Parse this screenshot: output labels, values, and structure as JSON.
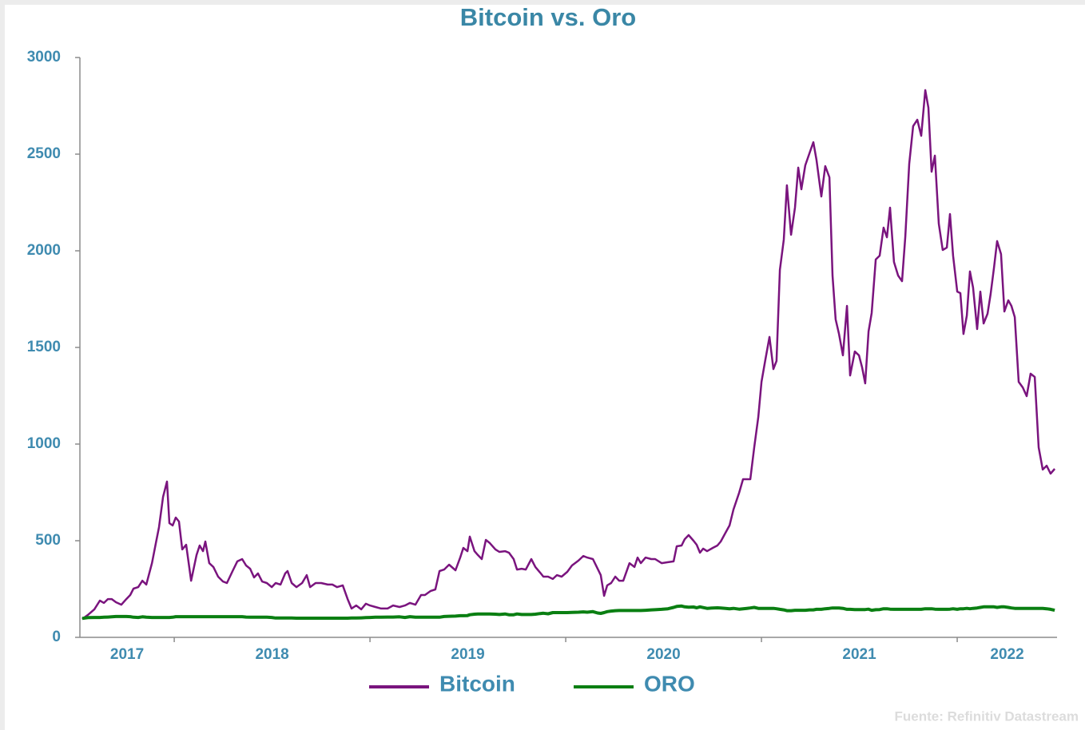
{
  "chart_data": {
    "type": "line",
    "title": "Bitcoin vs. Oro",
    "source": "Fuente: Refinitiv Datastream",
    "legend": "bottom",
    "xlim": [
      2017.518,
      2022.51
    ],
    "xticks": [
      {
        "value": 2017,
        "label": "2017"
      },
      {
        "value": 2018,
        "label": "2018"
      },
      {
        "value": 2019,
        "label": "2019"
      },
      {
        "value": 2020,
        "label": "2020"
      },
      {
        "value": 2021,
        "label": "2021"
      },
      {
        "value": 2022,
        "label": "2022"
      }
    ],
    "ylim": [
      0,
      3000
    ],
    "yticks": [
      0,
      500,
      1000,
      1500,
      2000,
      2500,
      3000
    ],
    "x": [
      2017.53,
      2017.559,
      2017.592,
      2017.62,
      2017.641,
      2017.661,
      2017.681,
      2017.702,
      2017.73,
      2017.755,
      2017.775,
      2017.792,
      2017.816,
      2017.837,
      2017.857,
      2017.886,
      2017.906,
      2017.922,
      2017.943,
      2017.963,
      2017.975,
      2017.992,
      2018.008,
      2018.024,
      2018.041,
      2018.061,
      2018.086,
      2018.114,
      2018.13,
      2018.147,
      2018.159,
      2018.179,
      2018.2,
      2018.224,
      2018.249,
      2018.269,
      2018.298,
      2018.322,
      2018.347,
      2018.367,
      2018.388,
      2018.408,
      2018.428,
      2018.449,
      2018.473,
      2018.498,
      2018.518,
      2018.543,
      2018.567,
      2018.579,
      2018.6,
      2018.624,
      2018.653,
      2018.677,
      2018.694,
      2018.722,
      2018.751,
      2018.784,
      2018.808,
      2018.832,
      2018.861,
      2018.886,
      2018.906,
      2018.93,
      2018.955,
      2018.979,
      2019.0,
      2019.028,
      2019.057,
      2019.09,
      2019.118,
      2019.151,
      2019.179,
      2019.204,
      2019.232,
      2019.261,
      2019.281,
      2019.31,
      2019.334,
      2019.355,
      2019.379,
      2019.404,
      2019.437,
      2019.461,
      2019.477,
      2019.498,
      2019.51,
      2019.534,
      2019.551,
      2019.571,
      2019.592,
      2019.612,
      2019.641,
      2019.661,
      2019.69,
      2019.71,
      2019.734,
      2019.751,
      2019.775,
      2019.796,
      2019.824,
      2019.845,
      2019.869,
      2019.886,
      2019.91,
      2019.934,
      2019.955,
      2019.979,
      2020.008,
      2020.032,
      2020.065,
      2020.09,
      2020.11,
      2020.139,
      2020.163,
      2020.179,
      2020.196,
      2020.212,
      2020.232,
      2020.253,
      2020.273,
      2020.294,
      2020.326,
      2020.351,
      2020.367,
      2020.384,
      2020.408,
      2020.437,
      2020.457,
      2020.49,
      2020.522,
      2020.551,
      2020.567,
      2020.592,
      2020.608,
      2020.628,
      2020.653,
      2020.669,
      2020.686,
      2020.702,
      2020.722,
      2020.751,
      2020.775,
      2020.792,
      2020.816,
      2020.837,
      2020.857,
      2020.886,
      2020.906,
      2020.926,
      2020.943,
      2020.963,
      2020.984,
      2021.0,
      2021.02,
      2021.041,
      2021.061,
      2021.077,
      2021.094,
      2021.114,
      2021.13,
      2021.151,
      2021.171,
      2021.188,
      2021.204,
      2021.224,
      2021.245,
      2021.265,
      2021.281,
      2021.306,
      2021.326,
      2021.347,
      2021.363,
      2021.379,
      2021.396,
      2021.416,
      2021.437,
      2021.453,
      2021.477,
      2021.498,
      2021.514,
      2021.53,
      2021.547,
      2021.563,
      2021.584,
      2021.604,
      2021.624,
      2021.641,
      2021.657,
      2021.677,
      2021.698,
      2021.718,
      2021.735,
      2021.755,
      2021.775,
      2021.796,
      2021.816,
      2021.837,
      2021.853,
      2021.869,
      2021.886,
      2021.906,
      2021.926,
      2021.947,
      2021.963,
      2021.979,
      2022.0,
      2022.016,
      2022.032,
      2022.049,
      2022.065,
      2022.081,
      2022.102,
      2022.118,
      2022.135,
      2022.155,
      2022.171,
      2022.188,
      2022.204,
      2022.224,
      2022.241,
      2022.261,
      2022.277,
      2022.294,
      2022.314,
      2022.335,
      2022.355,
      2022.375,
      2022.396,
      2022.416,
      2022.437,
      2022.457,
      2022.477,
      2022.498
    ],
    "series": [
      {
        "name": "Bitcoin",
        "color": "#7a147e",
        "width": 2.5,
        "values": [
          95,
          116,
          145,
          190,
          178,
          198,
          198,
          182,
          169,
          198,
          219,
          252,
          260,
          293,
          273,
          384,
          488,
          570,
          727,
          806,
          591,
          579,
          620,
          599,
          455,
          479,
          293,
          426,
          475,
          446,
          496,
          384,
          364,
          314,
          289,
          281,
          343,
          393,
          405,
          372,
          355,
          310,
          331,
          289,
          281,
          260,
          281,
          273,
          331,
          343,
          281,
          260,
          281,
          322,
          260,
          281,
          281,
          273,
          273,
          260,
          269,
          198,
          149,
          165,
          145,
          174,
          165,
          157,
          149,
          149,
          165,
          157,
          165,
          178,
          169,
          219,
          219,
          240,
          248,
          343,
          351,
          376,
          347,
          413,
          463,
          446,
          521,
          446,
          426,
          405,
          504,
          488,
          455,
          442,
          446,
          438,
          405,
          351,
          355,
          351,
          405,
          364,
          335,
          314,
          314,
          302,
          322,
          314,
          339,
          372,
          397,
          421,
          413,
          405,
          355,
          322,
          215,
          269,
          281,
          314,
          293,
          293,
          384,
          364,
          413,
          384,
          413,
          405,
          405,
          384,
          389,
          393,
          471,
          475,
          508,
          529,
          500,
          479,
          438,
          459,
          446,
          463,
          475,
          496,
          541,
          579,
          661,
          748,
          818,
          818,
          818,
          983,
          1140,
          1322,
          1438,
          1554,
          1388,
          1430,
          1901,
          2058,
          2339,
          2083,
          2223,
          2430,
          2318,
          2442,
          2504,
          2562,
          2471,
          2281,
          2438,
          2380,
          1872,
          1645,
          1570,
          1459,
          1715,
          1355,
          1479,
          1459,
          1397,
          1314,
          1583,
          1678,
          1955,
          1975,
          2120,
          2070,
          2223,
          1942,
          1872,
          1843,
          2074,
          2450,
          2645,
          2678,
          2595,
          2831,
          2740,
          2409,
          2492,
          2140,
          2004,
          2017,
          2190,
          1975,
          1789,
          1781,
          1570,
          1665,
          1893,
          1810,
          1595,
          1789,
          1624,
          1674,
          1777,
          1913,
          2050,
          1983,
          1686,
          1744,
          1715,
          1657,
          1322,
          1293,
          1248,
          1364,
          1347,
          983,
          868,
          888,
          847,
          872
        ]
      },
      {
        "name": "ORO",
        "color": "#0a7f12",
        "width": 4,
        "values": [
          98,
          102,
          103,
          103,
          104,
          105,
          106,
          108,
          108,
          108,
          107,
          104,
          103,
          106,
          104,
          103,
          103,
          103,
          103,
          103,
          103,
          104,
          107,
          107,
          107,
          107,
          107,
          107,
          107,
          107,
          107,
          107,
          107,
          107,
          107,
          107,
          107,
          107,
          107,
          105,
          104,
          104,
          104,
          104,
          104,
          103,
          100,
          100,
          100,
          100,
          100,
          99,
          99,
          99,
          99,
          99,
          99,
          99,
          99,
          99,
          99,
          99,
          100,
          100,
          101,
          102,
          103,
          104,
          104,
          105,
          105,
          106,
          103,
          107,
          104,
          104,
          104,
          104,
          104,
          104,
          108,
          109,
          110,
          112,
          112,
          113,
          117,
          120,
          121,
          121,
          121,
          121,
          120,
          118,
          121,
          117,
          117,
          121,
          118,
          118,
          118,
          120,
          123,
          125,
          122,
          128,
          128,
          128,
          128,
          129,
          130,
          132,
          130,
          133,
          126,
          124,
          128,
          133,
          136,
          138,
          139,
          139,
          139,
          139,
          139,
          139,
          140,
          142,
          143,
          145,
          148,
          155,
          160,
          162,
          158,
          156,
          157,
          153,
          158,
          154,
          150,
          152,
          153,
          152,
          150,
          148,
          150,
          146,
          148,
          150,
          152,
          155,
          150,
          150,
          150,
          150,
          150,
          148,
          145,
          142,
          138,
          138,
          140,
          140,
          140,
          140,
          142,
          142,
          145,
          145,
          148,
          150,
          152,
          152,
          152,
          150,
          145,
          145,
          144,
          144,
          144,
          144,
          146,
          140,
          143,
          144,
          148,
          148,
          146,
          145,
          145,
          145,
          145,
          145,
          145,
          145,
          145,
          148,
          148,
          148,
          146,
          145,
          145,
          145,
          146,
          148,
          145,
          148,
          148,
          150,
          148,
          150,
          152,
          155,
          158,
          158,
          158,
          158,
          155,
          158,
          158,
          155,
          152,
          150,
          150,
          150,
          150,
          150,
          150,
          150,
          150,
          148,
          145,
          140
        ]
      }
    ]
  }
}
